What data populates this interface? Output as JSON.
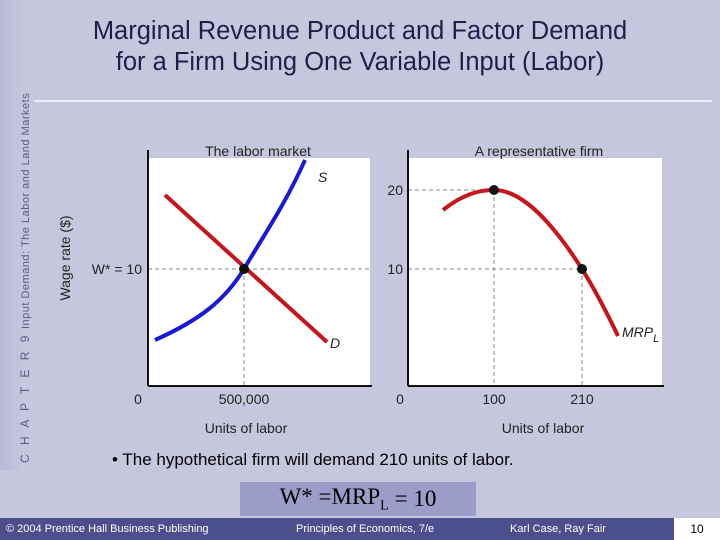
{
  "sidebar": {
    "chapter_label": "C H A P T E R  9",
    "subtitle": "Input Demand: The Labor and Land Markets"
  },
  "title": {
    "line1": "Marginal Revenue Product and Factor Demand",
    "line2": "for a Firm Using One Variable Input (Labor)"
  },
  "left_panel": {
    "heading": "The labor market",
    "y_axis_label": "Wage rate ($)",
    "wage_label": "W* = 10",
    "x_tick_0": "0",
    "x_tick_eq": "500,000",
    "x_axis_label": "Units of labor",
    "supply_label": "S",
    "demand_label": "D"
  },
  "right_panel": {
    "heading": "A representative firm",
    "y_tick_20": "20",
    "y_tick_10": "10",
    "x_tick_0": "0",
    "x_tick_100": "100",
    "x_tick_210": "210",
    "x_axis_label": "Units of labor",
    "curve_label_main": "MRP",
    "curve_label_sub": "L"
  },
  "chart_data": [
    {
      "type": "line",
      "title": "The labor market",
      "xlabel": "Units of labor",
      "ylabel": "Wage rate ($)",
      "series": [
        {
          "name": "S",
          "x": [
            0,
            500000,
            950000
          ],
          "y": [
            2,
            10,
            21
          ]
        },
        {
          "name": "D",
          "x": [
            0,
            500000,
            950000
          ],
          "y": [
            21,
            10,
            2
          ]
        }
      ],
      "equilibrium": {
        "x": 500000,
        "y": 10,
        "label": "W* = 10"
      },
      "x_ticks": [
        0,
        500000
      ]
    },
    {
      "type": "line",
      "title": "A representative firm",
      "xlabel": "Units of labor",
      "series": [
        {
          "name": "MRPL",
          "x": [
            20,
            60,
            100,
            150,
            210,
            260
          ],
          "y": [
            18,
            19.6,
            20,
            17.5,
            10,
            1
          ]
        }
      ],
      "points": [
        {
          "x": 100,
          "y": 20
        },
        {
          "x": 210,
          "y": 10
        }
      ],
      "x_ticks": [
        0,
        100,
        210
      ],
      "y_ticks": [
        10,
        20
      ]
    }
  ],
  "body": {
    "bullet": "•",
    "text": "The hypothetical firm will demand 210 units of labor.",
    "formula_lhs": "W* =MRP",
    "formula_sub": "L",
    "formula_rhs": "= 10"
  },
  "footer": {
    "copyright": "© 2004 Prentice Hall Business Publishing",
    "book": "Principles of Economics, 7/e",
    "authors": "Karl Case, Ray Fair",
    "page": "10"
  },
  "colors": {
    "background": "#c6c7dd",
    "curve": "#c4161c",
    "supply": "#1a1ad6",
    "footer": "#4c4f8d"
  }
}
